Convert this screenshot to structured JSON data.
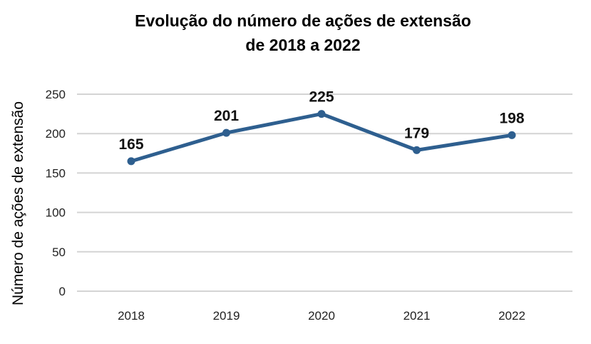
{
  "chart_data": {
    "type": "line",
    "title": [
      "Evolução do número de ações de extensão",
      "de 2018 a 2022"
    ],
    "ylabel": "Número de ações de extensão",
    "xlabel": "",
    "categories": [
      "2018",
      "2019",
      "2020",
      "2021",
      "2022"
    ],
    "series": [
      {
        "values": [
          165,
          201,
          225,
          179,
          198
        ],
        "color": "#2e5f8f"
      }
    ],
    "ylim": [
      0,
      250
    ],
    "yticks": [
      0,
      50,
      100,
      150,
      200,
      250
    ],
    "grid": true,
    "legend": "none"
  }
}
